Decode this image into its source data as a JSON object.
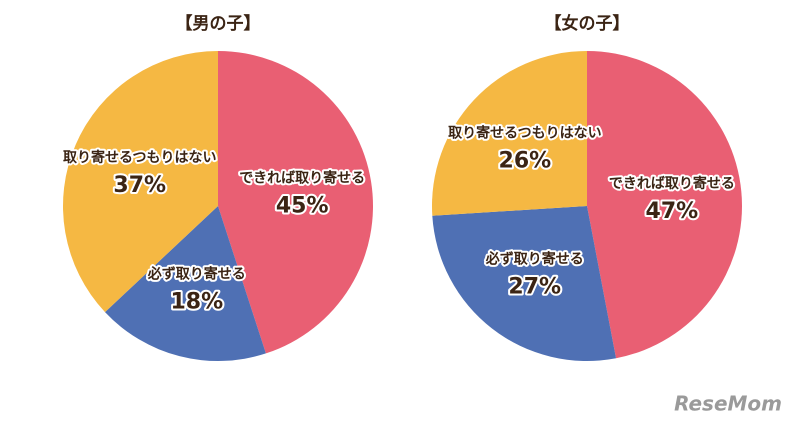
{
  "chart_data": [
    {
      "type": "pie",
      "title": "【男の子】",
      "categories": [
        "できれば取り寄せる",
        "必ず取り寄せる",
        "取り寄せるつもりはない"
      ],
      "values": [
        45,
        18,
        37
      ],
      "value_labels": [
        "45%",
        "18%",
        "37%"
      ],
      "colors": [
        "#e95f73",
        "#4f70b4",
        "#f5b843"
      ]
    },
    {
      "type": "pie",
      "title": "【女の子】",
      "categories": [
        "できれば取り寄せる",
        "必ず取り寄せる",
        "取り寄せるつもりはない"
      ],
      "values": [
        47,
        27,
        26
      ],
      "value_labels": [
        "47%",
        "27%",
        "26%"
      ],
      "colors": [
        "#e95f73",
        "#4f70b4",
        "#f5b843"
      ]
    }
  ],
  "watermark": "ReseMom"
}
